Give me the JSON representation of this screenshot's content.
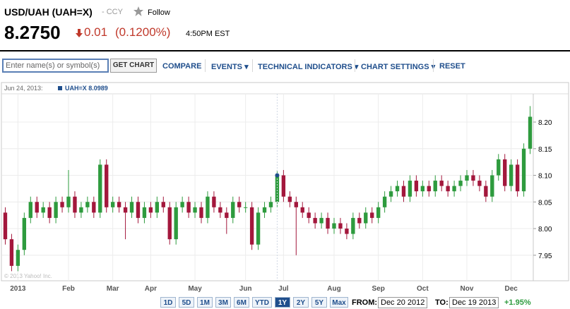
{
  "header": {
    "title": "USD/UAH (UAH=X)",
    "exchange": "- CCY",
    "follow": "Follow",
    "price": "8.2750",
    "change": "0.01",
    "change_pct": "(0.1200%)",
    "time": "4:50PM EST"
  },
  "toolbar": {
    "input_placeholder": "Enter name(s) or symbol(s)",
    "get_chart": "GET CHART",
    "compare": "COMPARE",
    "events": "EVENTS",
    "technical_indicators": "TECHNICAL INDICATORS",
    "chart_settings": "CHART SETTINGS",
    "reset": "RESET"
  },
  "chart_data": {
    "type": "candlestick",
    "tooltip": {
      "date": "Jun 24, 2013:",
      "label": "UAH=X 8.0989"
    },
    "watermark": "© 2013 Yahoo! Inc.",
    "up_color": "#2e9b3e",
    "down_color": "#a3173c",
    "grid": true,
    "categories": [
      null,
      null,
      "2013",
      null,
      null,
      null,
      null,
      null,
      null,
      null,
      "Feb",
      null,
      null,
      null,
      null,
      null,
      null,
      "Mar",
      null,
      null,
      null,
      null,
      null,
      "Apr",
      null,
      null,
      null,
      null,
      null,
      null,
      "May",
      null,
      null,
      null,
      null,
      null,
      null,
      null,
      "Jun",
      null,
      null,
      null,
      null,
      null,
      "Jul",
      null,
      null,
      null,
      null,
      null,
      null,
      null,
      "Aug",
      null,
      null,
      null,
      null,
      null,
      null,
      "Sep",
      null,
      null,
      null,
      null,
      null,
      null,
      "Oct",
      null,
      null,
      null,
      null,
      null,
      null,
      "Nov",
      null,
      null,
      null,
      null,
      null,
      null,
      "Dec",
      null,
      null,
      null
    ],
    "open": [
      8.03,
      7.98,
      7.93,
      7.96,
      8.02,
      8.05,
      8.03,
      8.04,
      8.02,
      8.05,
      8.04,
      8.06,
      8.03,
      8.04,
      8.05,
      8.03,
      8.12,
      8.04,
      8.05,
      8.04,
      8.03,
      8.05,
      8.02,
      8.04,
      8.03,
      8.05,
      8.04,
      7.98,
      8.04,
      8.05,
      8.03,
      8.04,
      8.02,
      8.06,
      8.04,
      8.03,
      8.02,
      8.05,
      8.04,
      8.04,
      7.97,
      8.03,
      8.04,
      8.05,
      8.1,
      8.06,
      8.05,
      8.04,
      8.03,
      8.02,
      8.01,
      8.02,
      8.0,
      8.01,
      8.0,
      7.99,
      8.02,
      8.01,
      8.03,
      8.02,
      8.04,
      8.06,
      8.07,
      8.08,
      8.06,
      8.09,
      8.07,
      8.08,
      8.07,
      8.09,
      8.08,
      8.07,
      8.08,
      8.09,
      8.1,
      8.09,
      8.08,
      8.06,
      8.1,
      8.13,
      8.08,
      8.12,
      8.07,
      8.15
    ],
    "high": [
      8.04,
      7.99,
      7.97,
      8.03,
      8.06,
      8.06,
      8.05,
      8.05,
      8.06,
      8.06,
      8.11,
      8.07,
      8.05,
      8.06,
      8.06,
      8.13,
      8.13,
      8.06,
      8.06,
      8.05,
      8.06,
      8.06,
      8.05,
      8.05,
      8.06,
      8.06,
      8.05,
      8.05,
      8.06,
      8.06,
      8.05,
      8.05,
      8.07,
      8.07,
      8.05,
      8.04,
      8.06,
      8.06,
      8.05,
      8.05,
      8.04,
      8.05,
      8.06,
      8.11,
      8.11,
      8.07,
      8.06,
      8.05,
      8.04,
      8.03,
      8.03,
      8.03,
      8.02,
      8.02,
      8.01,
      8.03,
      8.03,
      8.04,
      8.04,
      8.05,
      8.07,
      8.08,
      8.09,
      8.09,
      8.1,
      8.1,
      8.09,
      8.09,
      8.1,
      8.1,
      8.09,
      8.09,
      8.1,
      8.11,
      8.11,
      8.1,
      8.09,
      8.11,
      8.14,
      8.14,
      8.13,
      8.13,
      8.16,
      8.23
    ],
    "low": [
      7.97,
      7.92,
      7.92,
      7.95,
      8.01,
      8.02,
      8.02,
      8.01,
      8.01,
      8.03,
      8.03,
      8.02,
      8.02,
      8.03,
      8.02,
      8.02,
      8.03,
      8.03,
      8.03,
      7.98,
      8.02,
      8.01,
      8.01,
      8.02,
      8.02,
      8.03,
      7.97,
      7.97,
      8.03,
      8.02,
      8.02,
      8.01,
      8.01,
      8.03,
      8.02,
      7.99,
      8.01,
      8.03,
      8.03,
      7.96,
      7.96,
      8.02,
      8.03,
      8.04,
      8.05,
      8.04,
      7.95,
      8.02,
      8.01,
      8.0,
      8.0,
      7.99,
      7.99,
      7.99,
      7.98,
      7.98,
      8.0,
      8.0,
      8.01,
      8.01,
      8.03,
      8.05,
      8.06,
      8.05,
      8.05,
      8.06,
      8.06,
      8.06,
      8.06,
      8.07,
      8.06,
      8.06,
      8.07,
      8.08,
      8.08,
      8.07,
      8.05,
      8.05,
      8.09,
      8.07,
      8.07,
      8.06,
      8.06,
      8.14
    ],
    "close": [
      7.98,
      7.93,
      7.96,
      8.02,
      8.05,
      8.03,
      8.04,
      8.02,
      8.05,
      8.04,
      8.06,
      8.03,
      8.04,
      8.05,
      8.03,
      8.12,
      8.04,
      8.05,
      8.04,
      8.03,
      8.05,
      8.02,
      8.04,
      8.03,
      8.05,
      8.04,
      7.98,
      8.04,
      8.05,
      8.03,
      8.04,
      8.02,
      8.06,
      8.04,
      8.03,
      8.02,
      8.05,
      8.04,
      8.04,
      7.97,
      8.03,
      8.04,
      8.05,
      8.1,
      8.06,
      8.05,
      8.04,
      8.03,
      8.02,
      8.01,
      8.02,
      8.0,
      8.01,
      8.0,
      7.99,
      8.02,
      8.01,
      8.03,
      8.02,
      8.04,
      8.06,
      8.07,
      8.08,
      8.06,
      8.09,
      8.07,
      8.08,
      8.07,
      8.09,
      8.08,
      8.07,
      8.08,
      8.09,
      8.1,
      8.09,
      8.08,
      8.06,
      8.1,
      8.13,
      8.08,
      8.12,
      8.07,
      8.15,
      8.21
    ],
    "ylim": [
      7.902,
      8.253
    ],
    "yticks": [
      7.95,
      {
        "value": 8,
        "label": "8.00"
      },
      8.05,
      {
        "value": 8.1,
        "label": "8.10"
      },
      8.15,
      {
        "value": 8.2,
        "label": "8.20"
      }
    ]
  },
  "footer": {
    "ranges": [
      "1D",
      "5D",
      "1M",
      "3M",
      "6M",
      "YTD",
      "1Y",
      "2Y",
      "5Y",
      "Max"
    ],
    "from_label": "FROM:",
    "from": "Dec 20 2012",
    "to_label": "TO:",
    "to": "Dec 19 2013",
    "change": "+1.95%"
  }
}
